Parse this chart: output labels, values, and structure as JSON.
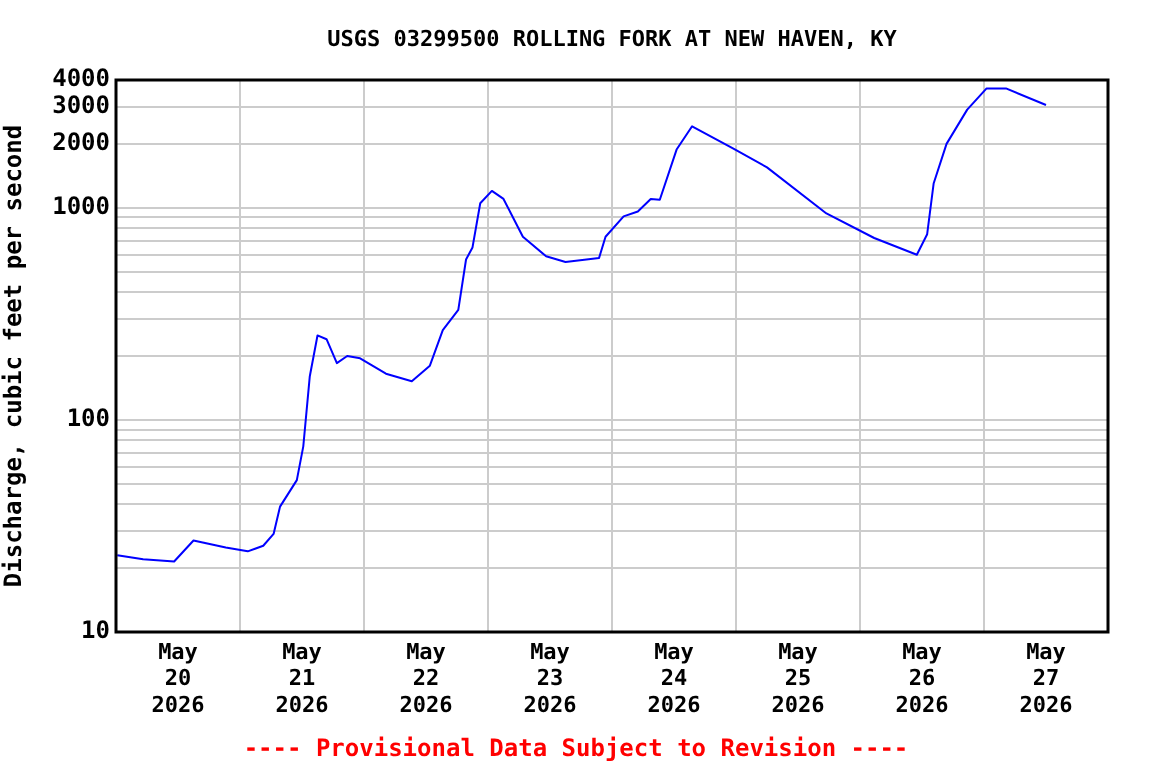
{
  "chart_data": {
    "type": "line",
    "title": "USGS 03299500 ROLLING FORK AT NEW HAVEN, KY",
    "ylabel": "Discharge, cubic feet per second",
    "annotations": [
      "---- Provisional Data Subject to Revision ----"
    ],
    "x": [
      "2026-05-20T00:15",
      "2026-05-20T05:15",
      "2026-05-20T11:15",
      "2026-05-20T15:00",
      "2026-05-20T21:15",
      "2026-05-21T01:30",
      "2026-05-21T04:30",
      "2026-05-21T06:30",
      "2026-05-21T07:45",
      "2026-05-21T11:00",
      "2026-05-21T12:15",
      "2026-05-21T13:30",
      "2026-05-21T15:00",
      "2026-05-21T16:45",
      "2026-05-21T18:45",
      "2026-05-21T20:45",
      "2026-05-21T23:15",
      "2026-05-22T04:15",
      "2026-05-22T09:15",
      "2026-05-22T12:45",
      "2026-05-22T15:15",
      "2026-05-22T18:15",
      "2026-05-22T19:45",
      "2026-05-22T21:00",
      "2026-05-22T22:30",
      "2026-05-23T00:45",
      "2026-05-23T03:00",
      "2026-05-23T06:45",
      "2026-05-23T11:15",
      "2026-05-23T15:00",
      "2026-05-23T21:30",
      "2026-05-23T22:45",
      "2026-05-24T02:15",
      "2026-05-24T05:00",
      "2026-05-24T07:30",
      "2026-05-24T09:15",
      "2026-05-24T12:30",
      "2026-05-24T15:30",
      "2026-05-24T23:30",
      "2026-05-25T06:00",
      "2026-05-25T17:30",
      "2026-05-26T02:45",
      "2026-05-26T11:00",
      "2026-05-26T13:00",
      "2026-05-26T14:15",
      "2026-05-26T16:45",
      "2026-05-26T20:45",
      "2026-05-27T00:30",
      "2026-05-27T04:15",
      "2026-05-27T12:00"
    ],
    "series": [
      {
        "color": "#0000ff",
        "values": [
          23,
          22,
          21.5,
          27,
          25,
          24,
          25.5,
          29,
          39,
          52,
          75,
          160,
          250,
          240,
          185,
          200,
          195,
          165,
          152,
          180,
          265,
          330,
          570,
          650,
          1050,
          1200,
          1100,
          730,
          590,
          555,
          580,
          730,
          910,
          960,
          1100,
          1090,
          1880,
          2420,
          1900,
          1550,
          940,
          720,
          600,
          750,
          1300,
          2000,
          2900,
          3650,
          3650,
          3050
        ]
      }
    ],
    "ylim": [
      10,
      4000
    ],
    "log": true,
    "grid": true,
    "legend": false,
    "yticks": [
      10,
      {
        "value": 20,
        "label": null
      },
      {
        "value": 30,
        "label": null
      },
      {
        "value": 40,
        "label": null
      },
      {
        "value": 50,
        "label": null
      },
      {
        "value": 60,
        "label": null
      },
      {
        "value": 70,
        "label": null
      },
      {
        "value": 80,
        "label": null
      },
      {
        "value": 90,
        "label": null
      },
      100,
      {
        "value": 200,
        "label": null
      },
      {
        "value": 300,
        "label": null
      },
      {
        "value": 400,
        "label": null
      },
      {
        "value": 500,
        "label": null
      },
      {
        "value": 600,
        "label": null
      },
      {
        "value": 700,
        "label": null
      },
      {
        "value": 800,
        "label": null
      },
      {
        "value": 900,
        "label": null
      },
      1000,
      2000,
      3000,
      4000
    ],
    "xlim": [
      "2026-05-20T00:00",
      "2026-05-28T00:00"
    ],
    "xticks": [
      {
        "value": "2026-05-20T12:00",
        "label": "May 20 2026"
      },
      {
        "value": "2026-05-21T00:00",
        "label": null
      },
      {
        "value": "2026-05-21T12:00",
        "label": "May 21 2026"
      },
      {
        "value": "2026-05-22T00:00",
        "label": null
      },
      {
        "value": "2026-05-22T12:00",
        "label": "May 22 2026"
      },
      {
        "value": "2026-05-23T00:00",
        "label": null
      },
      {
        "value": "2026-05-23T12:00",
        "label": "May 23 2026"
      },
      {
        "value": "2026-05-24T00:00",
        "label": null
      },
      {
        "value": "2026-05-24T12:00",
        "label": "May 24 2026"
      },
      {
        "value": "2026-05-25T00:00",
        "label": null
      },
      {
        "value": "2026-05-25T12:00",
        "label": "May 25 2026"
      },
      {
        "value": "2026-05-26T00:00",
        "label": null
      },
      {
        "value": "2026-05-26T12:00",
        "label": "May 26 2026"
      },
      {
        "value": "2026-05-27T00:00",
        "label": null
      },
      {
        "value": "2026-05-27T12:00",
        "label": "May 27 2026"
      }
    ]
  }
}
